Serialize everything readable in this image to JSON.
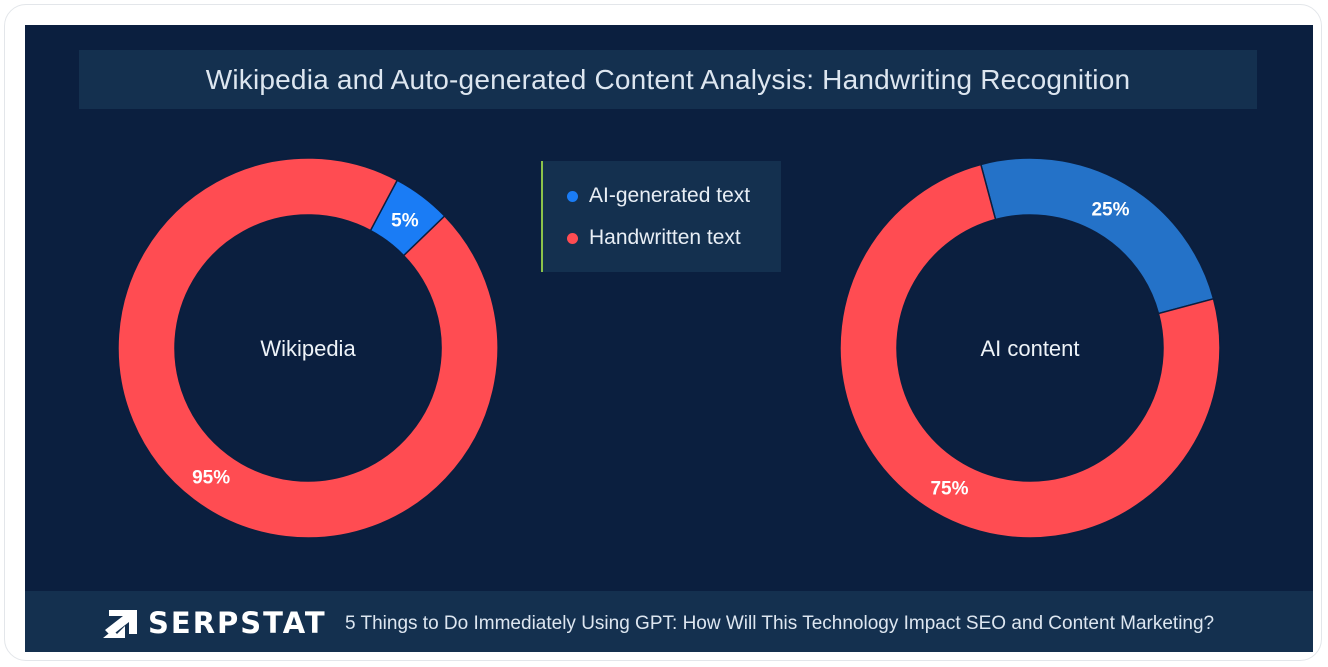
{
  "title": "Wikipedia and Auto-generated Content Analysis: Handwriting Recognition",
  "legend": [
    {
      "label": "AI-generated text",
      "color": "#1a7cf5"
    },
    {
      "label": "Handwritten text",
      "color": "#ff4c52"
    }
  ],
  "chart_data": [
    {
      "type": "pie",
      "center_label": "Wikipedia",
      "categories": [
        "AI-generated text",
        "Handwritten text"
      ],
      "values": [
        5,
        95
      ],
      "value_labels": [
        "5%",
        "95%"
      ],
      "colors": [
        "#1a7cf5",
        "#ff4c52"
      ]
    },
    {
      "type": "pie",
      "center_label": "AI content",
      "categories": [
        "AI-generated text",
        "Handwritten text"
      ],
      "values": [
        25,
        75
      ],
      "value_labels": [
        "25%",
        "75%"
      ],
      "colors": [
        "#2472c8",
        "#ff4c52"
      ]
    }
  ],
  "footer": {
    "logo_text": "SERPSTAT",
    "caption": "5 Things to Do Immediately Using GPT: How Will This Technology Impact SEO and Content Marketing?"
  }
}
